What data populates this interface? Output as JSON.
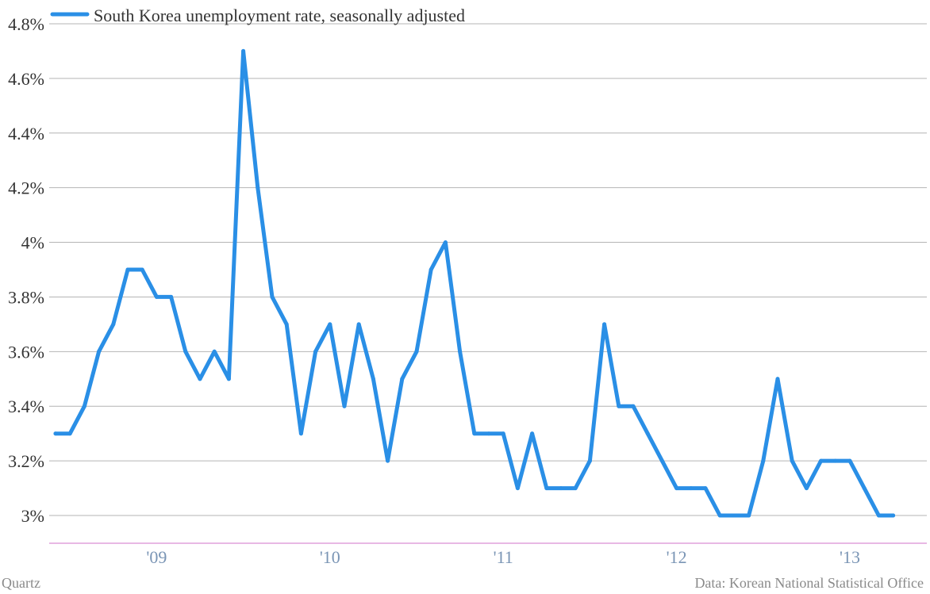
{
  "chart_data": {
    "type": "line",
    "title": "",
    "xlabel": "",
    "ylabel": "",
    "ylim": [
      2.9,
      4.8
    ],
    "y_ticks": [
      3.0,
      3.2,
      3.4,
      3.6,
      3.8,
      4.0,
      4.2,
      4.4,
      4.6,
      4.8
    ],
    "y_tick_labels": [
      "3%",
      "3.2%",
      "3.4%",
      "3.6%",
      "3.8%",
      "4%",
      "4.2%",
      "4.4%",
      "4.6%",
      "4.8%"
    ],
    "x_start": "2008-06",
    "x_end": "2013-04",
    "x_ticks": [
      "2009-01",
      "2010-01",
      "2011-01",
      "2012-01",
      "2013-01"
    ],
    "x_tick_labels": [
      "'09",
      "'10",
      "'11",
      "'12",
      "'13"
    ],
    "grid": true,
    "legend_position": "top-left",
    "series": [
      {
        "name": "South Korea unemployment rate, seasonally adjusted",
        "color": "#2a8fe6",
        "x": [
          "2008-06",
          "2008-07",
          "2008-08",
          "2008-09",
          "2008-10",
          "2008-11",
          "2008-12",
          "2009-01",
          "2009-02",
          "2009-03",
          "2009-04",
          "2009-05",
          "2009-06",
          "2009-07",
          "2009-08",
          "2009-09",
          "2009-10",
          "2009-11",
          "2009-12",
          "2010-01",
          "2010-02",
          "2010-03",
          "2010-04",
          "2010-05",
          "2010-06",
          "2010-07",
          "2010-08",
          "2010-09",
          "2010-10",
          "2010-11",
          "2010-12",
          "2011-01",
          "2011-02",
          "2011-03",
          "2011-04",
          "2011-05",
          "2011-06",
          "2011-07",
          "2011-08",
          "2011-09",
          "2011-10",
          "2011-11",
          "2011-12",
          "2012-01",
          "2012-02",
          "2012-03",
          "2012-04",
          "2012-05",
          "2012-06",
          "2012-07",
          "2012-08",
          "2012-09",
          "2012-10",
          "2012-11",
          "2012-12",
          "2013-01",
          "2013-02",
          "2013-03",
          "2013-04"
        ],
        "values": [
          3.3,
          3.3,
          3.4,
          3.6,
          3.7,
          3.9,
          3.9,
          3.8,
          3.8,
          3.6,
          3.5,
          3.6,
          3.5,
          4.7,
          4.2,
          3.8,
          3.7,
          3.3,
          3.6,
          3.7,
          3.4,
          3.7,
          3.5,
          3.2,
          3.5,
          3.6,
          3.9,
          4.0,
          3.6,
          3.3,
          3.3,
          3.3,
          3.1,
          3.3,
          3.1,
          3.1,
          3.1,
          3.2,
          3.7,
          3.4,
          3.4,
          3.3,
          3.2,
          3.1,
          3.1,
          3.1,
          3.0,
          3.0,
          3.0,
          3.2,
          3.5,
          3.2,
          3.1,
          3.2,
          3.2,
          3.2,
          3.1,
          3.0,
          3.0
        ]
      }
    ]
  },
  "footer": {
    "source_left": "Quartz",
    "source_right": "Data: Korean National Statistical Office"
  },
  "colors": {
    "line": "#2a8fe6",
    "grid": "#b4b4b4",
    "baseline": "#d070c8"
  }
}
